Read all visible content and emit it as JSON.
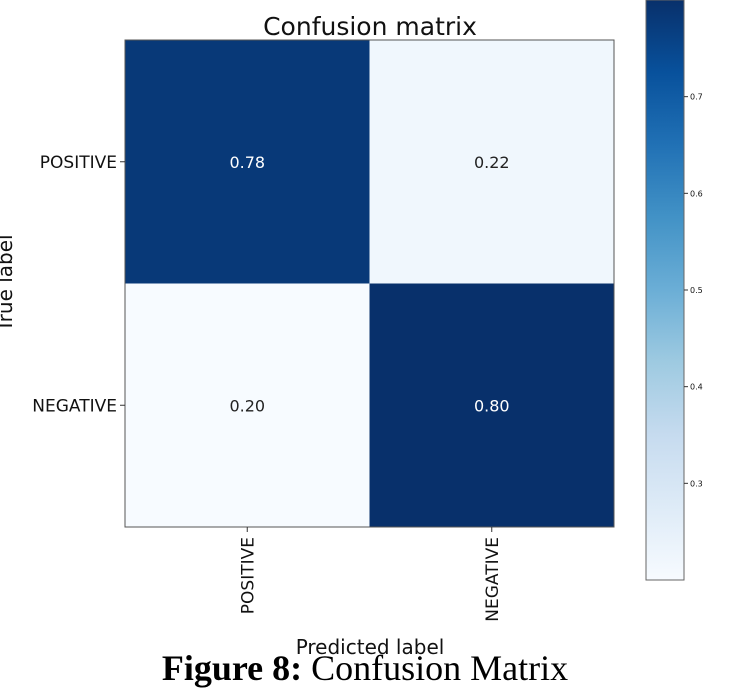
{
  "chart_data": {
    "type": "heatmap",
    "title": "Confusion matrix",
    "xlabel": "Predicted label",
    "ylabel": "True label",
    "row_labels": [
      "POSITIVE",
      "NEGATIVE"
    ],
    "col_labels": [
      "POSITIVE",
      "NEGATIVE"
    ],
    "values": [
      [
        0.78,
        0.22
      ],
      [
        0.2,
        0.8
      ]
    ],
    "value_labels": [
      [
        "0.78",
        "0.22"
      ],
      [
        "0.20",
        "0.80"
      ]
    ],
    "colormap": "Blues",
    "color_low": "#f7fbff",
    "color_high": "#08306b",
    "colorbar": {
      "range": [
        0.2,
        0.8
      ],
      "ticks": [
        0.3,
        0.4,
        0.5,
        0.6,
        0.7
      ],
      "tick_labels": [
        "0.3",
        "0.4",
        "0.5",
        "0.6",
        "0.7"
      ]
    }
  },
  "caption": {
    "label": "Figure 8:",
    "text": "Confusion Matrix"
  }
}
